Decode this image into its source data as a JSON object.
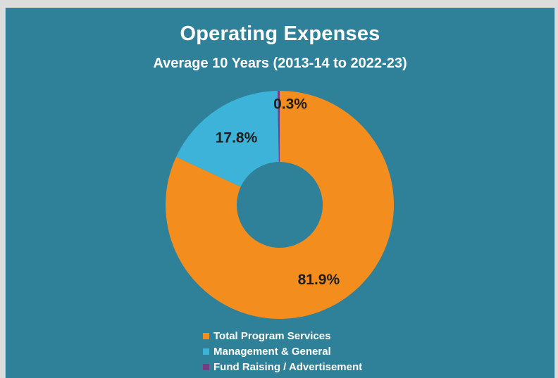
{
  "chart_data": {
    "type": "pie",
    "title": "Operating Expenses",
    "subtitle": "Average 10 Years (2013-14 to 2022-23)",
    "categories": [
      "Total Program Services",
      "Management & General",
      "Fund Raising / Advertisement"
    ],
    "values": [
      81.9,
      17.8,
      0.3
    ],
    "data_labels": [
      "81.9%",
      "17.8%",
      "0.3%"
    ],
    "colors": [
      "#f28d1e",
      "#3db3d9",
      "#7a3a86"
    ],
    "donut": true,
    "legend_position": "bottom"
  }
}
